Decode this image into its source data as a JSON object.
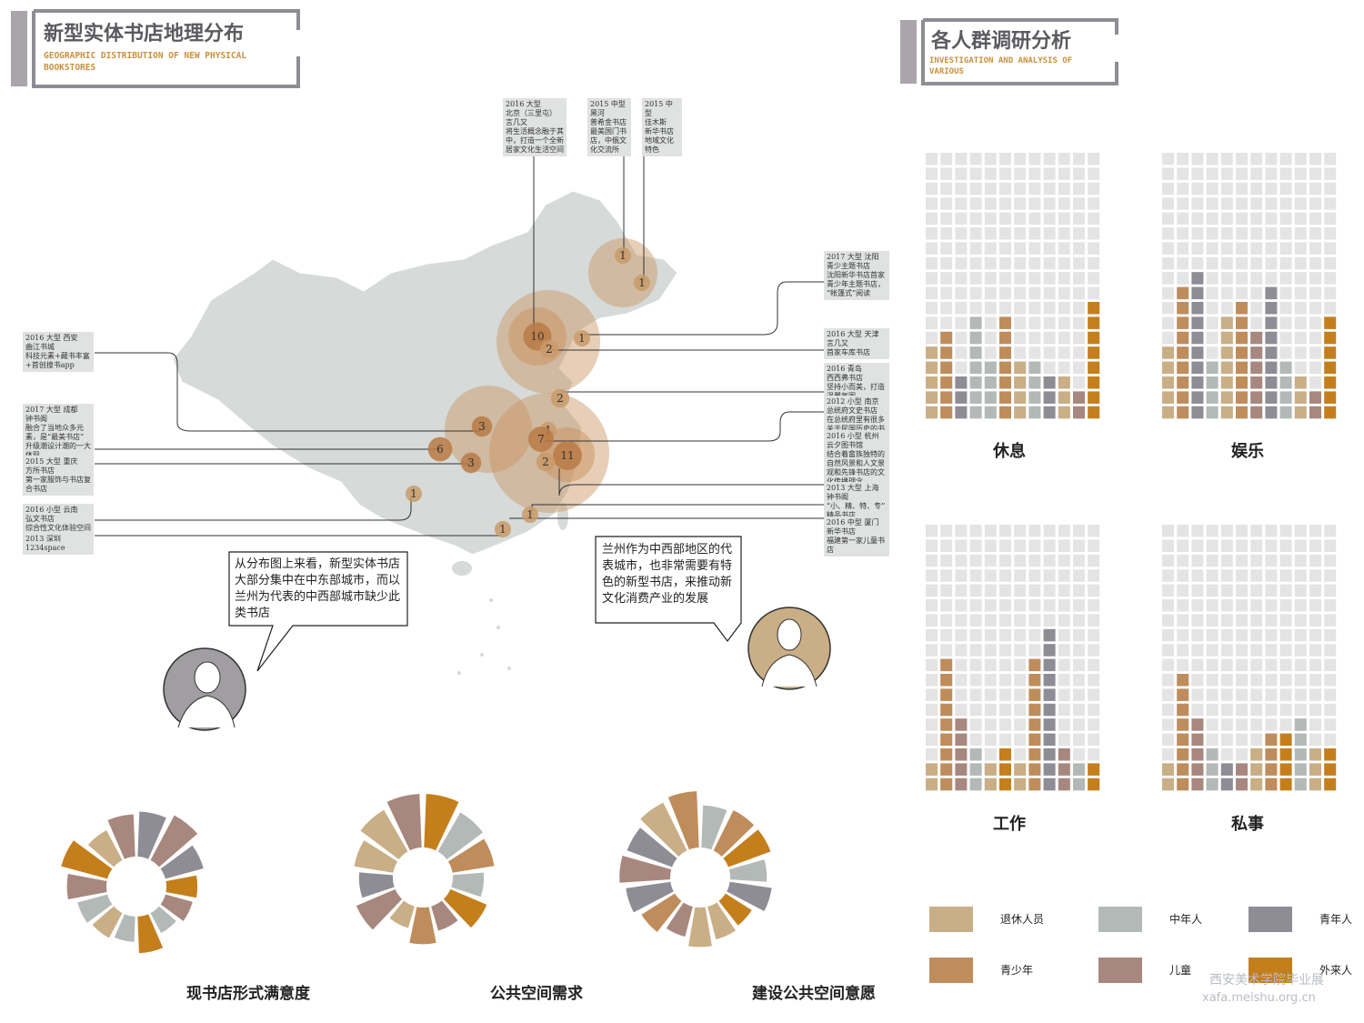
{
  "header_left": {
    "title": "新型实体书店地理分布",
    "subtitle": "GEOGRAPHIC DISTRIBUTION OF NEW PHYSICAL BOOKSTORES"
  },
  "header_right": {
    "title": "各人群调研分析",
    "subtitle": "INVESTIGATION AND ANALYSIS OF VARIOUS"
  },
  "map": {
    "bubbles": [
      1,
      1,
      10,
      2,
      1,
      2,
      3,
      6,
      3,
      1,
      7,
      11,
      2,
      1,
      1,
      1
    ],
    "notes": [
      "2016 大型\n北京（三里屯）\n言几又\n将生活概念融于其中，打造一个全新居家文化生活空间",
      "2015 中型\n黑河\n普希金书店\n最美国门书店，中俄文化交流所",
      "2015 中型\n佳木斯\n新华书店\n地域文化特色",
      "2016 大型 西安\n曲江书城\n科技元素+藏书丰富+首创搜书app",
      "2017 大型 成都\n钟书阁\n融合了当地众多元素，是“最美书店”升级潮设计潮的一大体现",
      "2015 大型 重庆\n方所书店\n第一家服饰与书店复合书店",
      "2016 小型 云南\n弘文书店\n综合性文化体验空间",
      "2013 深圳\n1234space",
      "2017 大型 沈阳\n青少主题书店\n沈阳新华书店首家青少年主题书店，“帐篷式”阅读",
      "2016 大型 天津\n言几又\n首家车库书店",
      "2016 青岛\n西西弗书店\n坚持小而美，打造温馨氛围",
      "2012 小型 南京\n总统府文史书店\n在总统府里有很多关于民国历史的书",
      "2016 小型 杭州\n云夕图书馆\n结合着畲族独特的自然风景和人文景观和先锋书店的文化传播理念",
      "2013 大型 上海\n钟书阁\n“小、精、特、专”精品书店",
      "2016 中型 厦门\n新华书店\n福建第一家儿童书店"
    ]
  },
  "speech": [
    "从分布图上来看，新型实体书店大部分集中在中东部城市，而以兰州为代表的中西部城市缺少此类书店",
    "兰州作为中西部地区的代表城市，也非常需要有特色的新型书店，来推动新文化消费产业的发展"
  ],
  "chart_data": [
    {
      "type": "waffle",
      "title": "休息",
      "ylim": [
        0,
        18
      ],
      "values": [
        5,
        6,
        3,
        7,
        4,
        7,
        4,
        4,
        3,
        3,
        2,
        8
      ],
      "colors": [
        "#c9ae86",
        "#bf8d5b",
        "#8e8c95",
        "#b3b9b6",
        "#b3b9b6",
        "#bf8d5b",
        "#c9ae86",
        "#b3b9b6",
        "#8e8c95",
        "#c9ae86",
        "#a8877e",
        "#c47f1c"
      ]
    },
    {
      "type": "waffle",
      "title": "娱乐",
      "ylim": [
        0,
        18
      ],
      "values": [
        5,
        9,
        10,
        4,
        7,
        8,
        6,
        9,
        4,
        3,
        2,
        7
      ],
      "colors": [
        "#c9ae86",
        "#bf8d5b",
        "#8e8c95",
        "#b3b9b6",
        "#c9ae86",
        "#bf8d5b",
        "#a8877e",
        "#8e8c95",
        "#b3b9b6",
        "#c9ae86",
        "#a8877e",
        "#c47f1c"
      ]
    },
    {
      "type": "waffle",
      "title": "工作",
      "ylim": [
        0,
        18
      ],
      "values": [
        2,
        9,
        5,
        3,
        2,
        3,
        2,
        9,
        11,
        3,
        2,
        2
      ],
      "colors": [
        "#c9ae86",
        "#bf8d5b",
        "#a8877e",
        "#b3b9b6",
        "#c9ae86",
        "#c47f1c",
        "#c9ae86",
        "#bf8d5b",
        "#8e8c95",
        "#a8877e",
        "#b3b9b6",
        "#c47f1c"
      ]
    },
    {
      "type": "waffle",
      "title": "私事",
      "ylim": [
        0,
        18
      ],
      "values": [
        2,
        8,
        5,
        3,
        2,
        2,
        3,
        4,
        4,
        5,
        3,
        3
      ],
      "colors": [
        "#c9ae86",
        "#bf8d5b",
        "#a8877e",
        "#b3b9b6",
        "#8e8c95",
        "#a8877e",
        "#c9ae86",
        "#bf8d5b",
        "#c47f1c",
        "#b3b9b6",
        "#c9ae86",
        "#c47f1c"
      ]
    },
    {
      "type": "radial",
      "title": "现书店形式满意度",
      "ylim": [
        0,
        100
      ],
      "values": [
        80,
        90,
        70,
        55,
        50,
        40,
        65,
        45,
        50,
        55,
        70,
        85,
        60,
        75
      ],
      "colors": [
        "#8e8c95",
        "#a8877e",
        "#8e8c95",
        "#c47f1c",
        "#a8877e",
        "#b3b9b6",
        "#c47f1c",
        "#b3b9b6",
        "#c9ae86",
        "#b3b9b6",
        "#a8877e",
        "#c47f1c",
        "#c9ae86",
        "#a8877e"
      ]
    },
    {
      "type": "radial",
      "title": "公共空间需求",
      "ylim": [
        0,
        100
      ],
      "values": [
        95,
        80,
        75,
        55,
        70,
        45,
        65,
        40,
        75,
        60,
        70,
        85,
        95
      ],
      "colors": [
        "#c47f1c",
        "#b3b9b6",
        "#bf8d5b",
        "#b3b9b6",
        "#c47f1c",
        "#a8877e",
        "#bf8d5b",
        "#c9ae86",
        "#a8877e",
        "#8e8c95",
        "#c9ae86",
        "#c9ae86",
        "#a8877e"
      ]
    },
    {
      "type": "radial",
      "title": "建设公共空间意愿",
      "ylim": [
        0,
        100
      ],
      "values": [
        75,
        80,
        80,
        65,
        75,
        55,
        60,
        70,
        55,
        70,
        80,
        90,
        85,
        95,
        100
      ],
      "colors": [
        "#b3b9b6",
        "#bf8d5b",
        "#c47f1c",
        "#b3b9b6",
        "#8e8c95",
        "#c47f1c",
        "#c9ae86",
        "#c9ae86",
        "#a8877e",
        "#bf8d5b",
        "#8e8c95",
        "#a8877e",
        "#8e8c95",
        "#c9ae86",
        "#bf8d5b"
      ]
    }
  ],
  "legend": {
    "items": [
      {
        "name": "退休人员",
        "color": "#c9ae86"
      },
      {
        "name": "中年人",
        "color": "#b3b9b6"
      },
      {
        "name": "青年人",
        "color": "#8e8c95"
      },
      {
        "name": "青少年",
        "color": "#bf8d5b"
      },
      {
        "name": "儿童",
        "color": "#a8877e"
      },
      {
        "name": "外来人",
        "color": "#c47f1c"
      }
    ]
  },
  "watermark": {
    "school": "西安美术学院毕业展",
    "url": "xafa.meishu.org.cn"
  }
}
